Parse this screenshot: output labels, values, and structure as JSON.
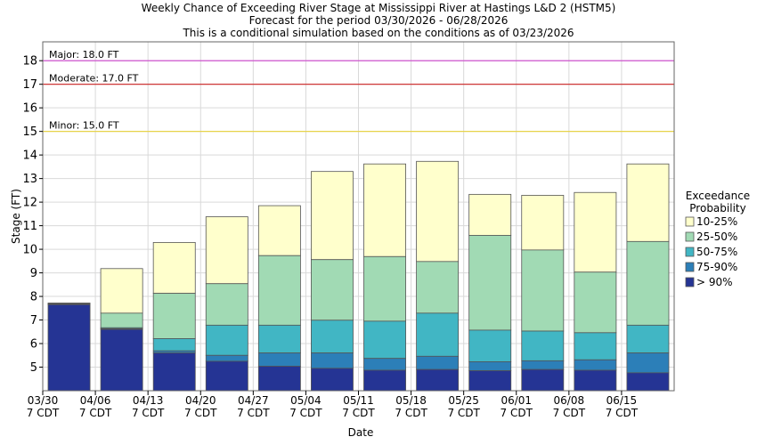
{
  "chart_data": {
    "type": "bar",
    "stacked": true,
    "title_lines": [
      "Weekly Chance of Exceeding River Stage at Mississippi River at Hastings L&D 2 (HSTM5)",
      "Forecast for the period 03/30/2026 - 06/28/2026",
      "This is a conditional simulation based on the conditions as of 03/23/2026"
    ],
    "xlabel": "Date",
    "ylabel": "Stage (FT)",
    "ylim": [
      4.0,
      18.8
    ],
    "yticks": [
      5,
      6,
      7,
      8,
      9,
      10,
      11,
      12,
      13,
      14,
      15,
      16,
      17,
      18
    ],
    "grid": true,
    "x_tick_labels": [
      [
        "03/30",
        "7 CDT"
      ],
      [
        "04/06",
        "7 CDT"
      ],
      [
        "04/13",
        "7 CDT"
      ],
      [
        "04/20",
        "7 CDT"
      ],
      [
        "04/27",
        "7 CDT"
      ],
      [
        "05/04",
        "7 CDT"
      ],
      [
        "05/11",
        "7 CDT"
      ],
      [
        "05/18",
        "7 CDT"
      ],
      [
        "05/25",
        "7 CDT"
      ],
      [
        "06/01",
        "7 CDT"
      ],
      [
        "06/08",
        "7 CDT"
      ],
      [
        "06/15",
        "7 CDT"
      ]
    ],
    "thresholds": [
      {
        "label": "Major: 18.0 FT",
        "value": 18.0,
        "color": "#cc44cc"
      },
      {
        "label": "Moderate: 17.0 FT",
        "value": 17.0,
        "color": "#cc2222"
      },
      {
        "label": "Minor: 15.0 FT",
        "value": 15.0,
        "color": "#e8d44a"
      }
    ],
    "legend": {
      "title_lines": [
        "Exceedance",
        "Probability"
      ],
      "position": "right",
      "items": [
        {
          "label": "10-25%",
          "color": "#ffffcc"
        },
        {
          "label": "25-50%",
          "color": "#a1dab4"
        },
        {
          "label": "50-75%",
          "color": "#41b6c4"
        },
        {
          "label": "75-90%",
          "color": "#2c7fb8"
        },
        {
          "label": "> 90%",
          "color": "#253494"
        }
      ]
    },
    "weeks": [
      {
        "week": "03/30",
        "values": [
          7.72,
          7.7,
          7.68,
          7.66,
          7.65
        ]
      },
      {
        "week": "04/06",
        "values": [
          9.18,
          7.29,
          6.67,
          6.63,
          6.6
        ]
      },
      {
        "week": "04/13",
        "values": [
          10.29,
          8.13,
          6.21,
          5.69,
          5.6
        ]
      },
      {
        "week": "04/20",
        "values": [
          11.38,
          8.54,
          6.78,
          5.5,
          5.25
        ]
      },
      {
        "week": "04/27",
        "values": [
          11.85,
          9.73,
          6.78,
          5.6,
          5.04
        ]
      },
      {
        "week": "05/04",
        "values": [
          13.3,
          9.56,
          6.99,
          5.6,
          4.95
        ]
      },
      {
        "week": "05/11",
        "values": [
          13.62,
          9.69,
          6.95,
          5.37,
          4.87
        ]
      },
      {
        "week": "05/18",
        "values": [
          13.73,
          9.48,
          7.29,
          5.46,
          4.9
        ]
      },
      {
        "week": "05/25",
        "values": [
          12.33,
          10.59,
          6.57,
          5.23,
          4.85
        ]
      },
      {
        "week": "06/01",
        "values": [
          12.29,
          9.97,
          6.53,
          5.27,
          4.9
        ]
      },
      {
        "week": "06/08",
        "values": [
          12.41,
          9.03,
          6.46,
          5.31,
          4.87
        ]
      },
      {
        "week": "06/15",
        "values": [
          13.62,
          10.33,
          6.78,
          5.6,
          4.76
        ]
      }
    ]
  }
}
